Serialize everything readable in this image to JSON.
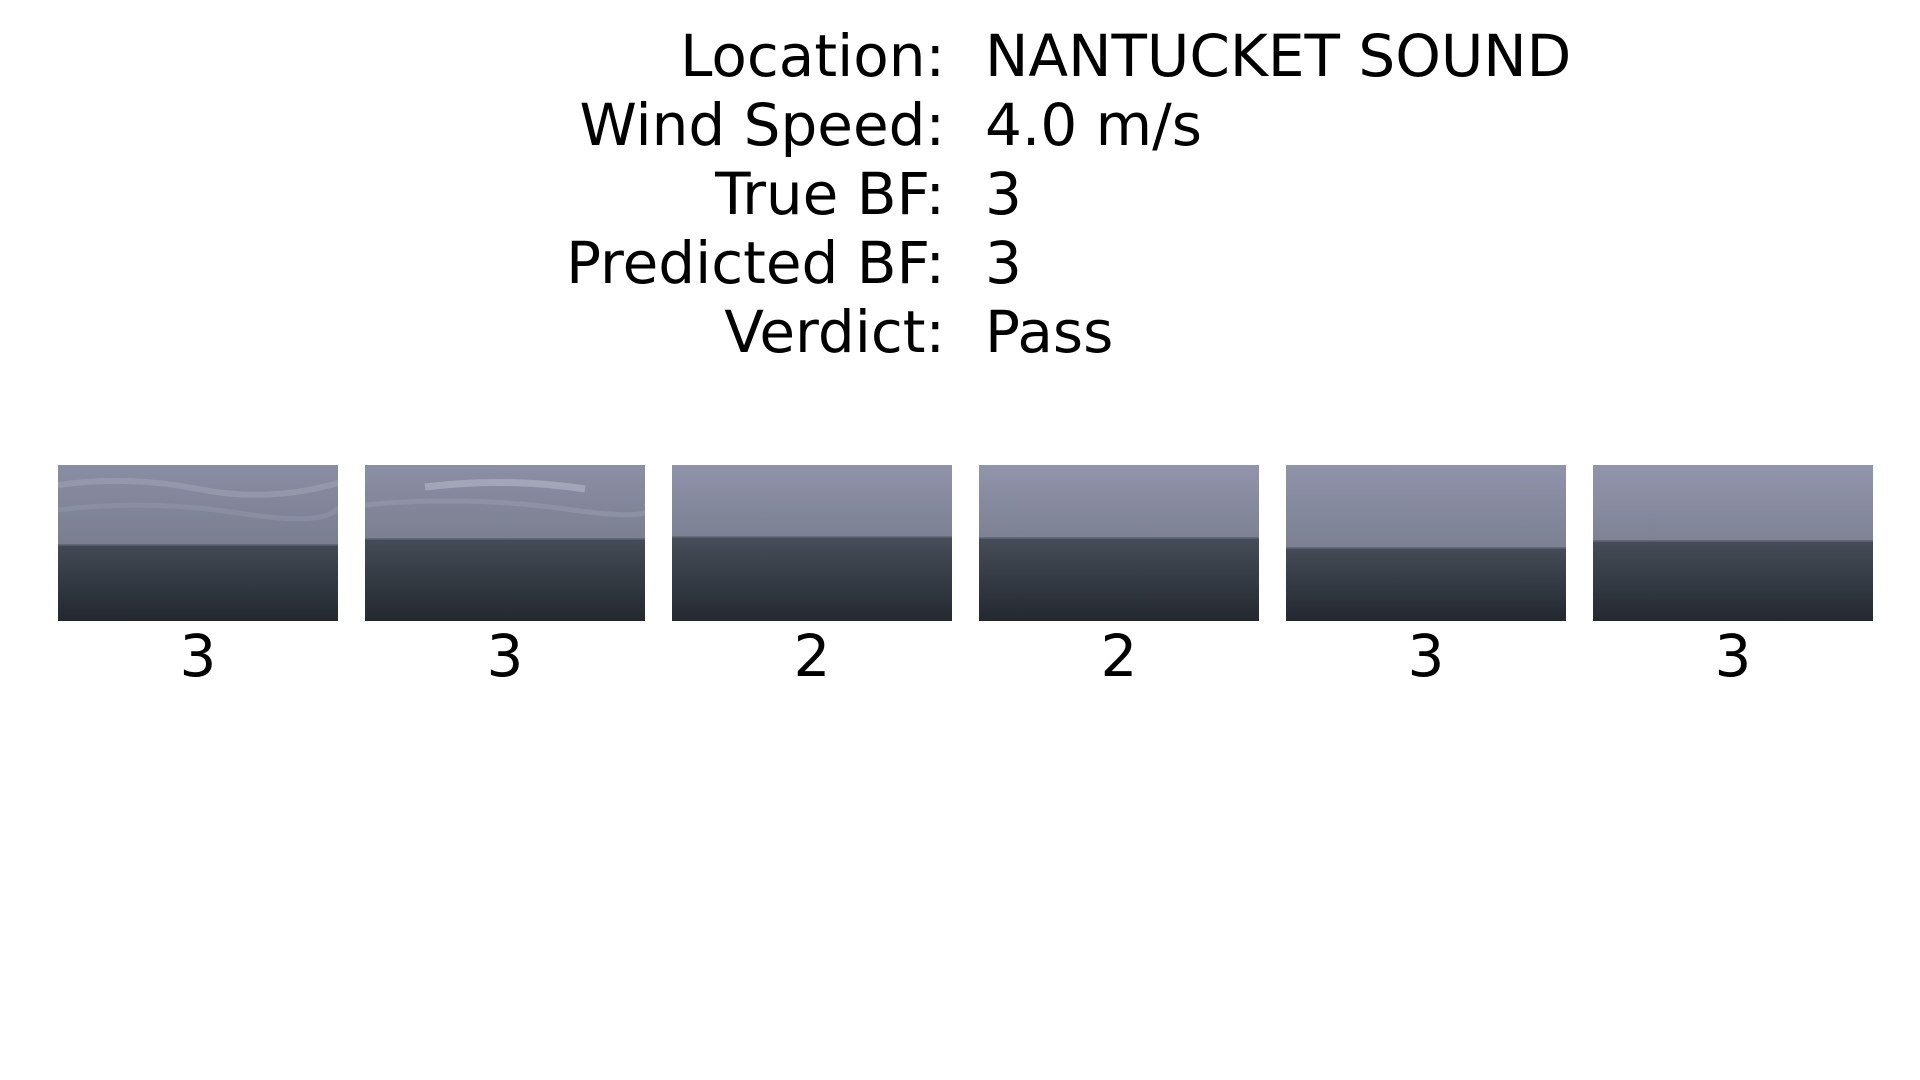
{
  "info": [
    {
      "key": "Location:",
      "value": "NANTUCKET SOUND"
    },
    {
      "key": "Wind Speed:",
      "value": "4.0 m/s"
    },
    {
      "key": "True BF:",
      "value": "3"
    },
    {
      "key": "Predicted BF:",
      "value": "3"
    },
    {
      "key": "Verdict:",
      "value": "Pass"
    }
  ],
  "frames": [
    {
      "label": "3",
      "image": "overcast-sea-photo"
    },
    {
      "label": "3",
      "image": "overcast-sea-photo"
    },
    {
      "label": "2",
      "image": "overcast-sea-photo"
    },
    {
      "label": "2",
      "image": "overcast-sea-photo"
    },
    {
      "label": "3",
      "image": "overcast-sea-photo"
    },
    {
      "label": "3",
      "image": "overcast-sea-photo"
    }
  ],
  "colors": {
    "sky_top": "#9496ad",
    "sky_bottom": "#7c8091",
    "sea_top": "#4a525c",
    "sea_bottom": "#262c33"
  }
}
